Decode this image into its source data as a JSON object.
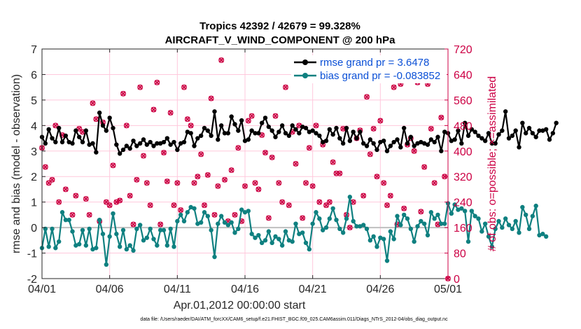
{
  "chart_data": {
    "type": "line",
    "title_line1": "Tropics 42392 / 42679 = 99.328%",
    "title_line2": "AIRCRAFT_V_WIND_COMPONENT @ 200 hPa",
    "ylabel_left": "rmse and bias (model - observation)",
    "ylabel_right": "# of obs: o=possible; ×=assimilated",
    "xlabel": "Apr.01,2012 00:00:00 start",
    "footnote": "data file: /Users/raeder/DAI/ATM_forcXX/CAM6_setup/f.e21.FHIST_BGC.f09_025.CAM6assim.011/Diags_NTrS_2012-04/obs_diag_output.nc",
    "xlim": [
      0,
      30
    ],
    "ylim_left": [
      -2,
      7
    ],
    "ylim_right": [
      0,
      720
    ],
    "x_ticks": [
      0,
      5,
      10,
      15,
      20,
      25,
      30
    ],
    "x_tick_labels": [
      "04/01",
      "04/06",
      "04/11",
      "04/16",
      "04/21",
      "04/26",
      "05/01"
    ],
    "y_left_ticks": [
      -2,
      -1,
      0,
      1,
      2,
      3,
      4,
      5,
      6,
      7
    ],
    "y_left_tick_labels": [
      "-2",
      "-1",
      "0",
      "1",
      "2",
      "3",
      "4",
      "5",
      "6",
      "7"
    ],
    "y_right_ticks": [
      0,
      80,
      160,
      240,
      320,
      400,
      480,
      560,
      640,
      720
    ],
    "y_right_tick_labels": [
      "0",
      "80",
      "160",
      "240",
      "320",
      "400",
      "480",
      "560",
      "640",
      "720"
    ],
    "x_step": 0.25,
    "series": [
      {
        "name": "rmse grand pr = 3.6478",
        "color": "#000000",
        "values": [
          3.55,
          3.3,
          3.85,
          3.5,
          3.35,
          3.9,
          3.35,
          3.6,
          3.35,
          3.3,
          3.8,
          3.55,
          3.35,
          3.8,
          3.25,
          3.3,
          2.95,
          4.5,
          4.0,
          3.8,
          4.3,
          3.9,
          3.25,
          2.9,
          3.05,
          3.2,
          3.1,
          3.4,
          3.2,
          3.3,
          3.45,
          3.25,
          3.35,
          3.2,
          3.3,
          3.3,
          3.35,
          3.5,
          3.25,
          3.35,
          3.05,
          3.3,
          3.35,
          3.75,
          3.7,
          3.2,
          3.5,
          3.6,
          3.9,
          3.8,
          3.6,
          4.55,
          3.45,
          4.0,
          3.7,
          3.7,
          4.35,
          4.05,
          3.8,
          4.2,
          3.4,
          3.45,
          3.8,
          3.7,
          3.7,
          4.1,
          4.3,
          3.95,
          3.8,
          3.55,
          3.75,
          4.0,
          3.7,
          3.6,
          4.0,
          3.85,
          3.7,
          3.95,
          3.9,
          3.75,
          3.8,
          3.7,
          3.6,
          3.35,
          3.4,
          3.85,
          3.65,
          3.9,
          3.5,
          3.3,
          3.9,
          3.4,
          3.75,
          3.5,
          3.75,
          3.3,
          3.2,
          3.45,
          3.3,
          3.05,
          3.35,
          3.4,
          3.0,
          3.2,
          3.35,
          3.45,
          3.15,
          3.9,
          3.3,
          3.55,
          3.2,
          3.3,
          3.35,
          3.3,
          3.25,
          3.45,
          3.35,
          3.55,
          3.0,
          3.75,
          3.7,
          3.4,
          3.45,
          3.8,
          3.3,
          4.1,
          3.6,
          3.85,
          3.75,
          3.6,
          3.5,
          3.4,
          3.7,
          3.3,
          3.3,
          3.65,
          3.8,
          4.55,
          3.5,
          3.6,
          3.8,
          3.15,
          4.1,
          3.7,
          3.9,
          3.7,
          3.55,
          3.8,
          3.8,
          3.85,
          3.45,
          3.7,
          4.1
        ]
      },
      {
        "name": "bias grand pr = -0.083852",
        "color": "#0f8080",
        "values": [
          -0.8,
          -0.05,
          -0.75,
          -0.05,
          -0.8,
          -0.55,
          0.6,
          0.3,
          0.3,
          -0.15,
          -0.7,
          -0.65,
          -0.1,
          -0.7,
          -0.05,
          -0.85,
          -0.8,
          0.3,
          -0.25,
          -1.45,
          -0.35,
          0.55,
          -0.25,
          -0.75,
          -0.1,
          -0.85,
          -0.7,
          -0.9,
          -0.05,
          0.1,
          -0.5,
          -0.4,
          -0.05,
          -0.45,
          -0.7,
          -0.1,
          -0.1,
          -0.7,
          -0.05,
          -0.75,
          0.25,
          0.5,
          0.25,
          0.6,
          0.8,
          0.75,
          0.15,
          0.2,
          0.6,
          0.45,
          -0.1,
          -1.15,
          0.15,
          0.45,
          0.2,
          0.1,
          0.2,
          -0.2,
          -0.05,
          0.7,
          0.6,
          0.65,
          -0.25,
          -0.4,
          -0.3,
          -0.6,
          -0.5,
          -0.15,
          -0.6,
          -0.35,
          -0.45,
          -0.7,
          -0.15,
          -0.5,
          -0.55,
          0.15,
          -0.25,
          -0.2,
          -0.6,
          -0.85,
          0.15,
          0.6,
          0.35,
          -0.1,
          0.0,
          0.35,
          0.75,
          0.3,
          -0.05,
          -0.2,
          0.35,
          1.2,
          0.25,
          0.05,
          0.05,
          0.1,
          -0.05,
          -0.5,
          -0.35,
          -0.75,
          -0.4,
          -0.45,
          -1.3,
          -0.15,
          -0.45,
          0.45,
          0.1,
          0.5,
          0.35,
          -0.05,
          -0.55,
          0.05,
          0.25,
          0.15,
          -0.3,
          0.6,
          0.35,
          0.5,
          0.15,
          0.15,
          0.95,
          0.55,
          0.9,
          0.7,
          0.75,
          0.65,
          -0.55,
          0.65,
          0.45,
          0.35,
          -0.15,
          0.15,
          -0.35,
          -0.75,
          -0.05,
          0.25,
          0.0,
          0.35,
          0.1,
          -0.05,
          0.25,
          -0.2,
          0.8,
          0.5,
          -0.05,
          0.45,
          0.85,
          -0.3,
          -0.25,
          -0.35
        ]
      }
    ],
    "obs_possible_color": "#cc0044",
    "obs_assimilated_color": "#cc0044",
    "obs_count_series": [
      {
        "x": 0.0,
        "value": 410
      },
      {
        "x": 0.25,
        "value": 350
      },
      {
        "x": 0.5,
        "value": 300
      },
      {
        "x": 0.75,
        "value": 310
      },
      {
        "x": 1.0,
        "value": 480
      },
      {
        "x": 1.25,
        "value": 240
      },
      {
        "x": 1.5,
        "value": 450
      },
      {
        "x": 1.75,
        "value": 280
      },
      {
        "x": 2.25,
        "value": 200
      },
      {
        "x": 2.5,
        "value": 260
      },
      {
        "x": 2.75,
        "value": 470
      },
      {
        "x": 3.0,
        "value": 460
      },
      {
        "x": 3.25,
        "value": 250
      },
      {
        "x": 3.5,
        "value": 200
      },
      {
        "x": 3.75,
        "value": 550
      },
      {
        "x": 4.0,
        "value": 500
      },
      {
        "x": 4.25,
        "value": 180
      },
      {
        "x": 4.5,
        "value": 490
      },
      {
        "x": 4.75,
        "value": 240
      },
      {
        "x": 5.0,
        "value": 230
      },
      {
        "x": 5.25,
        "value": 355
      },
      {
        "x": 5.5,
        "value": 240
      },
      {
        "x": 5.75,
        "value": 245
      },
      {
        "x": 6.0,
        "value": 580
      },
      {
        "x": 6.25,
        "value": 480
      },
      {
        "x": 6.5,
        "value": 260
      },
      {
        "x": 6.75,
        "value": 170
      },
      {
        "x": 7.0,
        "value": 310
      },
      {
        "x": 7.25,
        "value": 600
      },
      {
        "x": 7.5,
        "value": 385
      },
      {
        "x": 7.75,
        "value": 300
      },
      {
        "x": 8.0,
        "value": 230
      },
      {
        "x": 8.25,
        "value": 530
      },
      {
        "x": 8.5,
        "value": 615
      },
      {
        "x": 8.75,
        "value": 170
      },
      {
        "x": 9.0,
        "value": 395
      },
      {
        "x": 9.25,
        "value": 305
      },
      {
        "x": 9.5,
        "value": 520
      },
      {
        "x": 9.75,
        "value": 230
      },
      {
        "x": 10.0,
        "value": 300
      },
      {
        "x": 10.25,
        "value": 215
      },
      {
        "x": 10.5,
        "value": 600
      },
      {
        "x": 10.75,
        "value": 500
      },
      {
        "x": 11.0,
        "value": 480
      },
      {
        "x": 11.25,
        "value": 300
      },
      {
        "x": 11.5,
        "value": 320
      },
      {
        "x": 11.75,
        "value": 390
      },
      {
        "x": 12.0,
        "value": 230
      },
      {
        "x": 12.25,
        "value": 325
      },
      {
        "x": 12.5,
        "value": 565
      },
      {
        "x": 12.75,
        "value": 200
      },
      {
        "x": 13.0,
        "value": 290
      },
      {
        "x": 13.25,
        "value": 685
      },
      {
        "x": 13.5,
        "value": 310
      },
      {
        "x": 13.75,
        "value": 180
      },
      {
        "x": 14.0,
        "value": 340
      },
      {
        "x": 14.25,
        "value": 200
      },
      {
        "x": 14.5,
        "value": 410
      },
      {
        "x": 14.75,
        "value": 180
      },
      {
        "x": 15.0,
        "value": 290
      },
      {
        "x": 15.25,
        "value": 495
      },
      {
        "x": 15.5,
        "value": 510
      },
      {
        "x": 15.75,
        "value": 300
      },
      {
        "x": 16.0,
        "value": 280
      },
      {
        "x": 16.25,
        "value": 450
      },
      {
        "x": 16.5,
        "value": 395
      },
      {
        "x": 16.75,
        "value": 190
      },
      {
        "x": 17.0,
        "value": 380
      },
      {
        "x": 17.25,
        "value": 510
      },
      {
        "x": 17.5,
        "value": 300
      },
      {
        "x": 17.75,
        "value": 240
      },
      {
        "x": 18.0,
        "value": 600
      },
      {
        "x": 18.25,
        "value": 230
      },
      {
        "x": 18.5,
        "value": 460
      },
      {
        "x": 18.75,
        "value": 360
      },
      {
        "x": 19.0,
        "value": 480
      },
      {
        "x": 19.25,
        "value": 190
      },
      {
        "x": 19.5,
        "value": 300
      },
      {
        "x": 19.75,
        "value": 410
      },
      {
        "x": 20.0,
        "value": 290
      },
      {
        "x": 20.25,
        "value": 480
      },
      {
        "x": 20.5,
        "value": 240
      },
      {
        "x": 20.75,
        "value": 420
      },
      {
        "x": 21.0,
        "value": 230
      },
      {
        "x": 21.25,
        "value": 240
      },
      {
        "x": 21.5,
        "value": 365
      },
      {
        "x": 21.75,
        "value": 330
      },
      {
        "x": 22.0,
        "value": 330
      },
      {
        "x": 22.25,
        "value": 470
      },
      {
        "x": 22.5,
        "value": 200
      },
      {
        "x": 22.75,
        "value": 160
      },
      {
        "x": 23.0,
        "value": 240
      },
      {
        "x": 23.25,
        "value": 440
      },
      {
        "x": 23.5,
        "value": 465
      },
      {
        "x": 23.75,
        "value": 260
      },
      {
        "x": 24.0,
        "value": 570
      },
      {
        "x": 24.25,
        "value": 390
      },
      {
        "x": 24.5,
        "value": 470
      },
      {
        "x": 24.75,
        "value": 320
      },
      {
        "x": 25.0,
        "value": 495
      },
      {
        "x": 25.25,
        "value": 300
      },
      {
        "x": 25.5,
        "value": 230
      },
      {
        "x": 25.75,
        "value": 260
      },
      {
        "x": 26.0,
        "value": 600
      },
      {
        "x": 26.25,
        "value": 170
      },
      {
        "x": 26.5,
        "value": 610
      },
      {
        "x": 26.75,
        "value": 220
      },
      {
        "x": 27.0,
        "value": 420
      },
      {
        "x": 27.25,
        "value": 440
      },
      {
        "x": 27.5,
        "value": 400
      },
      {
        "x": 27.75,
        "value": 615
      },
      {
        "x": 28.0,
        "value": 210
      },
      {
        "x": 28.25,
        "value": 350
      },
      {
        "x": 28.5,
        "value": 610
      },
      {
        "x": 28.75,
        "value": 470
      },
      {
        "x": 29.0,
        "value": 300
      },
      {
        "x": 29.25,
        "value": 170
      },
      {
        "x": 29.5,
        "value": 505
      },
      {
        "x": 29.75,
        "value": 320
      },
      {
        "x": 30.0,
        "value": 0
      }
    ],
    "grid": true,
    "zero_line": true,
    "legend_position": "top-right"
  }
}
